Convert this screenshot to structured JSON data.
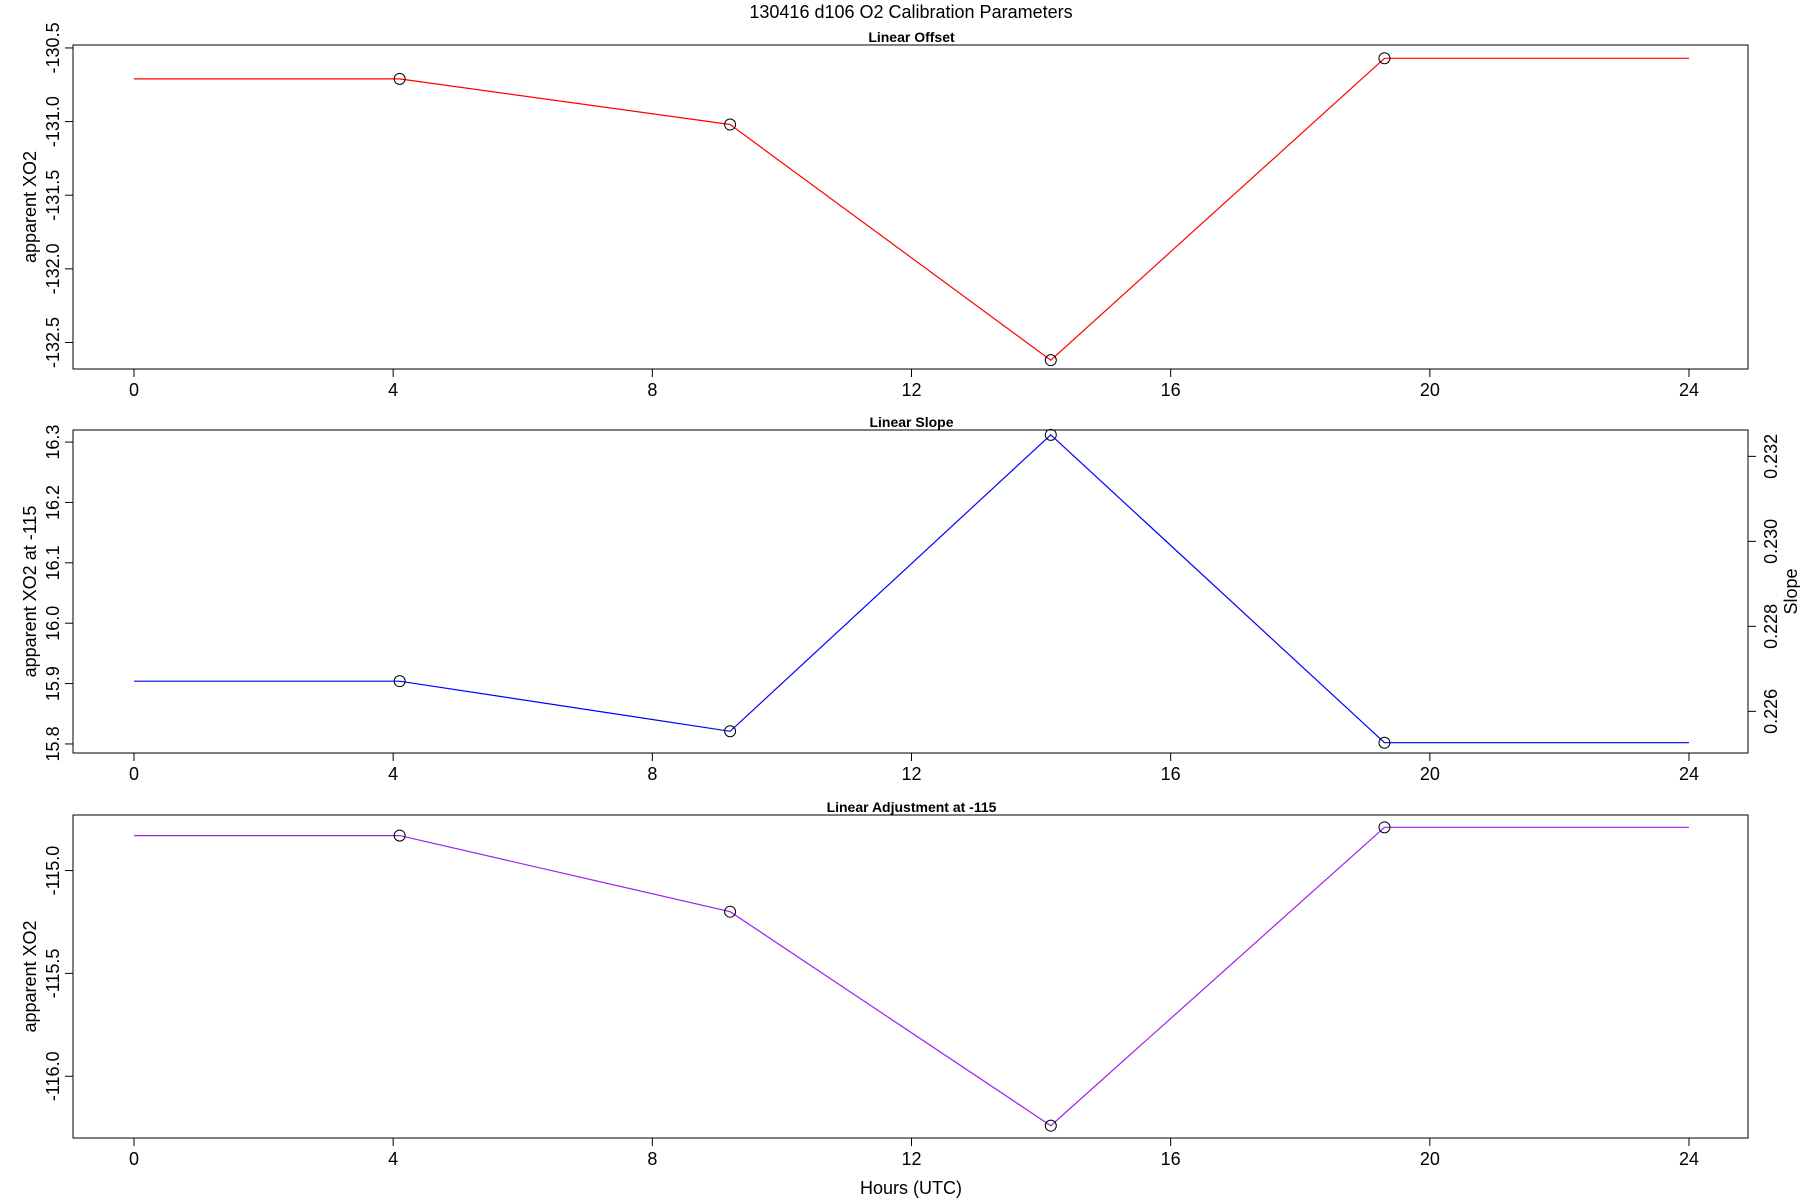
{
  "title": "130416   d106   O2 Calibration Parameters",
  "xlabel": "Hours (UTC)",
  "colors": {
    "offset": "#ff0000",
    "slope": "#0000ff",
    "adjustment": "#a020f0",
    "axes": "#000000"
  },
  "chart_data": [
    {
      "type": "line",
      "title": "Linear Offset",
      "xlabel": "",
      "ylabel": "apparent XO2",
      "xlim": [
        0,
        24
      ],
      "ylim": [
        -132.68,
        -130.48
      ],
      "x_ticks": [
        0,
        4,
        8,
        12,
        16,
        20,
        24
      ],
      "y_ticks": [
        -132.5,
        -132.0,
        -131.5,
        -131.0,
        -130.5
      ],
      "y_tick_labels": [
        "-132.5",
        "-132.0",
        "-131.5",
        "-131.0",
        "-130.5"
      ],
      "grid": false,
      "series": [
        {
          "color": "#ff0000",
          "points": [
            [
              0,
              -130.71
            ],
            [
              4.1,
              -130.71
            ],
            [
              9.2,
              -131.02
            ],
            [
              14.15,
              -132.62
            ],
            [
              19.3,
              -130.57
            ],
            [
              24,
              -130.57
            ]
          ],
          "markers": [
            [
              4.1,
              -130.71
            ],
            [
              9.2,
              -131.02
            ],
            [
              14.15,
              -132.62
            ],
            [
              19.3,
              -130.57
            ]
          ]
        }
      ]
    },
    {
      "type": "line",
      "title": "Linear Slope",
      "xlabel": "",
      "ylabel": "apparent XO2 at -115",
      "y2label": "Slope",
      "xlim": [
        0,
        24
      ],
      "ylim": [
        15.785,
        16.32
      ],
      "x_ticks": [
        0,
        4,
        8,
        12,
        16,
        20,
        24
      ],
      "y_ticks": [
        15.8,
        15.9,
        16.0,
        16.1,
        16.2,
        16.3
      ],
      "y_tick_labels": [
        "15.8",
        "15.9",
        "16.0",
        "16.1",
        "16.2",
        "16.3"
      ],
      "y2lim": [
        0.22502,
        0.23262
      ],
      "y2_ticks": [
        0.226,
        0.228,
        0.23,
        0.232
      ],
      "y2_tick_labels": [
        "0.226",
        "0.228",
        "0.230",
        "0.232"
      ],
      "grid": false,
      "series": [
        {
          "color": "#0000ff",
          "points": [
            [
              0,
              15.904
            ],
            [
              4.1,
              15.904
            ],
            [
              9.2,
              15.821
            ],
            [
              14.15,
              16.312
            ],
            [
              19.3,
              15.802
            ],
            [
              24,
              15.802
            ]
          ],
          "markers": [
            [
              4.1,
              15.904
            ],
            [
              9.2,
              15.821
            ],
            [
              14.15,
              16.312
            ],
            [
              19.3,
              15.802
            ]
          ]
        }
      ]
    },
    {
      "type": "line",
      "title": "Linear Adjustment at -115",
      "xlabel": "Hours (UTC)",
      "ylabel": "apparent XO2",
      "xlim": [
        0,
        24
      ],
      "ylim": [
        -116.3,
        -114.73
      ],
      "x_ticks": [
        0,
        4,
        8,
        12,
        16,
        20,
        24
      ],
      "y_ticks": [
        -116.0,
        -115.5,
        -115.0
      ],
      "y_tick_labels": [
        "-116.0",
        "-115.5",
        "-115.0"
      ],
      "grid": false,
      "series": [
        {
          "color": "#a020f0",
          "points": [
            [
              0,
              -114.83
            ],
            [
              4.1,
              -114.83
            ],
            [
              9.2,
              -115.2
            ],
            [
              14.15,
              -116.24
            ],
            [
              19.3,
              -114.79
            ],
            [
              24,
              -114.79
            ]
          ],
          "markers": [
            [
              4.1,
              -114.83
            ],
            [
              9.2,
              -115.2
            ],
            [
              14.15,
              -116.24
            ],
            [
              19.3,
              -114.79
            ]
          ]
        }
      ]
    }
  ]
}
